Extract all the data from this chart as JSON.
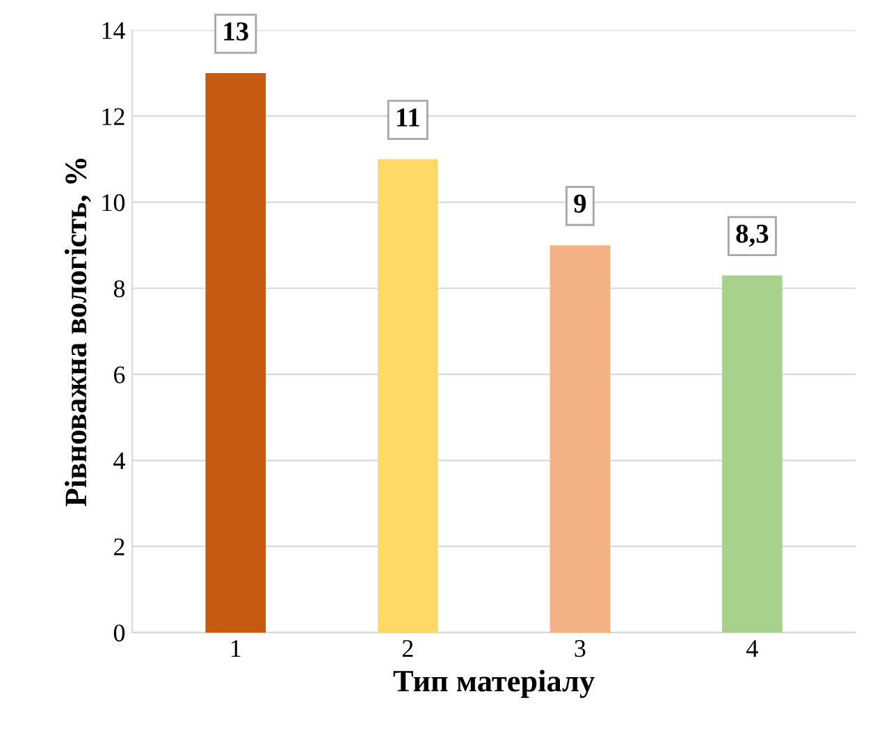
{
  "chart_data": {
    "type": "bar",
    "xlabel": "Тип матеріалу",
    "ylabel": "Рівноважна вологість, %",
    "categories": [
      "1",
      "2",
      "3",
      "4"
    ],
    "values": [
      13,
      11,
      9,
      8.3
    ],
    "value_labels": [
      "13",
      "11",
      "9",
      "8,3"
    ],
    "colors": [
      "#c55a11",
      "#ffd966",
      "#f4b183",
      "#a9d18e"
    ],
    "ylim": [
      0,
      14
    ],
    "yticks": [
      0,
      2,
      4,
      6,
      8,
      10,
      12,
      14
    ],
    "grid": "y"
  }
}
